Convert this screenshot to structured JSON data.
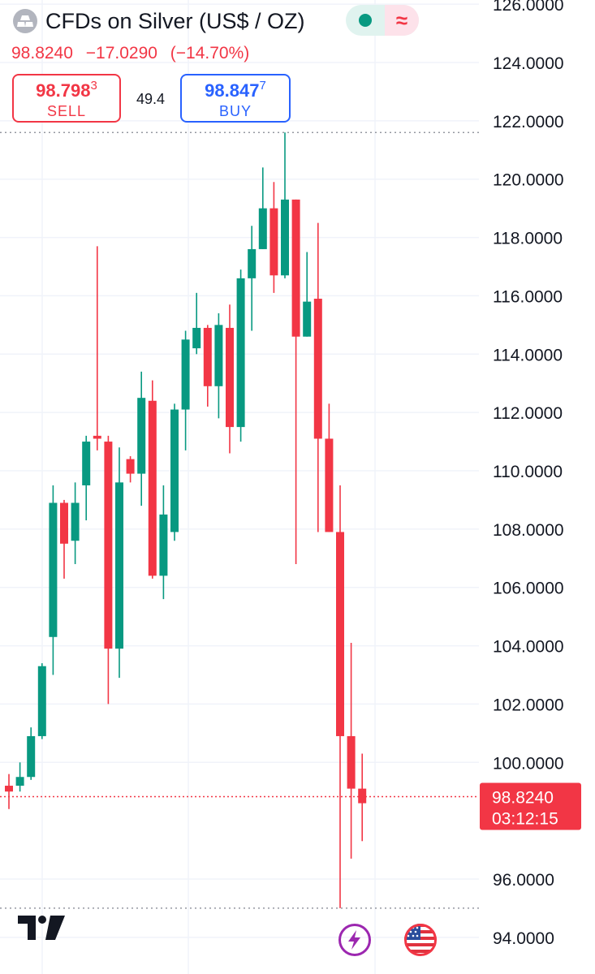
{
  "header": {
    "title": "CFDs on Silver (US$ / OZ)",
    "last_price": "98.8240",
    "change": "−17.0290",
    "change_pct": "(−14.70%)",
    "sell": {
      "price_main": "98.798",
      "price_sup": "3",
      "label": "SELL"
    },
    "buy": {
      "price_main": "98.847",
      "price_sup": "7",
      "label": "BUY"
    },
    "spread": "49.4",
    "status_delay_symbol": "≈"
  },
  "badge": {
    "price": "98.8240",
    "countdown": "03:12:15"
  },
  "colors": {
    "up": "#089981",
    "down": "#f23645",
    "accent": "#2962ff"
  },
  "icons": {
    "logo": "tradingview-logo-icon",
    "flash": "lightning-icon",
    "flag": "us-flag-icon"
  },
  "chart_data": {
    "type": "candlestick",
    "y_ticks": [
      "126.0000",
      "124.0000",
      "122.0000",
      "120.0000",
      "118.0000",
      "116.0000",
      "114.0000",
      "112.0000",
      "110.0000",
      "108.0000",
      "106.0000",
      "104.0000",
      "102.0000",
      "100.0000",
      "96.0000",
      "94.0000"
    ],
    "ylim": [
      93.5,
      126.2
    ],
    "high_line": 121.6,
    "low_line": 95.0,
    "last_price": 98.824,
    "candles": [
      {
        "o": 99.2,
        "h": 99.6,
        "l": 98.4,
        "c": 99.0
      },
      {
        "o": 99.2,
        "h": 100.0,
        "l": 99.0,
        "c": 99.5
      },
      {
        "o": 99.5,
        "h": 101.2,
        "l": 99.4,
        "c": 100.9
      },
      {
        "o": 100.9,
        "h": 103.4,
        "l": 100.8,
        "c": 103.3
      },
      {
        "o": 104.3,
        "h": 109.5,
        "l": 103.0,
        "c": 108.9
      },
      {
        "o": 108.9,
        "h": 109.0,
        "l": 106.3,
        "c": 107.5
      },
      {
        "o": 107.6,
        "h": 109.6,
        "l": 106.8,
        "c": 108.9
      },
      {
        "o": 109.5,
        "h": 111.2,
        "l": 108.3,
        "c": 111.0
      },
      {
        "o": 111.2,
        "h": 117.7,
        "l": 110.7,
        "c": 111.1
      },
      {
        "o": 111.0,
        "h": 111.2,
        "l": 102.0,
        "c": 103.9
      },
      {
        "o": 103.9,
        "h": 110.8,
        "l": 102.9,
        "c": 109.6
      },
      {
        "o": 110.4,
        "h": 110.5,
        "l": 109.6,
        "c": 109.9
      },
      {
        "o": 109.9,
        "h": 113.4,
        "l": 108.8,
        "c": 112.5
      },
      {
        "o": 112.4,
        "h": 113.1,
        "l": 106.3,
        "c": 106.4
      },
      {
        "o": 106.4,
        "h": 109.5,
        "l": 105.6,
        "c": 108.5
      },
      {
        "o": 107.9,
        "h": 112.3,
        "l": 107.6,
        "c": 112.1
      },
      {
        "o": 112.1,
        "h": 114.8,
        "l": 110.7,
        "c": 114.5
      },
      {
        "o": 114.2,
        "h": 116.1,
        "l": 114.0,
        "c": 114.9
      },
      {
        "o": 114.9,
        "h": 115.0,
        "l": 112.2,
        "c": 112.9
      },
      {
        "o": 112.9,
        "h": 115.4,
        "l": 111.8,
        "c": 115.0
      },
      {
        "o": 114.9,
        "h": 115.7,
        "l": 110.6,
        "c": 111.5
      },
      {
        "o": 111.5,
        "h": 116.9,
        "l": 111.0,
        "c": 116.6
      },
      {
        "o": 116.6,
        "h": 118.4,
        "l": 114.8,
        "c": 117.6
      },
      {
        "o": 117.6,
        "h": 120.4,
        "l": 117.6,
        "c": 119.0
      },
      {
        "o": 119.0,
        "h": 119.9,
        "l": 116.1,
        "c": 116.7
      },
      {
        "o": 116.7,
        "h": 121.6,
        "l": 116.6,
        "c": 119.3
      },
      {
        "o": 119.3,
        "h": 119.3,
        "l": 106.8,
        "c": 114.6
      },
      {
        "o": 114.6,
        "h": 117.5,
        "l": 114.6,
        "c": 115.8
      },
      {
        "o": 115.9,
        "h": 118.5,
        "l": 107.9,
        "c": 111.1
      },
      {
        "o": 111.1,
        "h": 112.3,
        "l": 107.9,
        "c": 107.9
      },
      {
        "o": 107.9,
        "h": 109.5,
        "l": 95.0,
        "c": 100.9
      },
      {
        "o": 100.9,
        "h": 104.1,
        "l": 96.7,
        "c": 99.1
      },
      {
        "o": 99.1,
        "h": 100.3,
        "l": 97.3,
        "c": 98.6
      }
    ]
  }
}
